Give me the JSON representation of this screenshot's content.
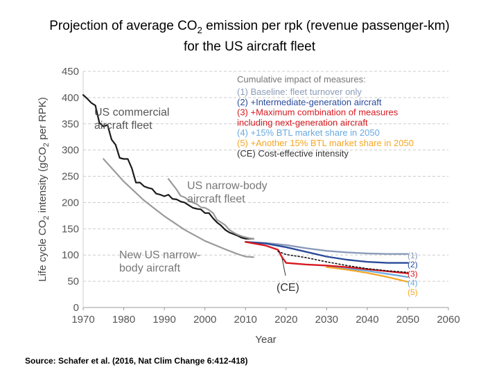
{
  "title": {
    "line1_pre": "Projection of average CO",
    "line1_sub": "2",
    "line1_post": " emission per rpk (revenue passenger-km)",
    "line2": "for the US aircraft fleet"
  },
  "source": "Source: Schafer et al. (2016, Nat Clim Change 6:412-418)",
  "colors": {
    "commercial": "#1a1a1a",
    "narrowbody": "#9a9a9a",
    "baseline": "#8a9bb8",
    "intermediate": "#2a4a9a",
    "maxcombo": "#d71920",
    "btl15": "#69a9e0",
    "btl30": "#f5a623",
    "ce": "#111111"
  },
  "chart_data": {
    "type": "line",
    "xlabel": "Year",
    "ylabel_parts": [
      "Life cycle CO",
      "2",
      " intensity (gCO",
      "2",
      " per RPK)"
    ],
    "xlim": [
      1970,
      2060
    ],
    "ylim": [
      0,
      450
    ],
    "xticks": [
      1970,
      1980,
      1990,
      2000,
      2010,
      2020,
      2030,
      2040,
      2050,
      2060
    ],
    "yticks": [
      0,
      50,
      100,
      150,
      200,
      250,
      300,
      350,
      400,
      450
    ],
    "grid": "dashed horizontal",
    "legend_title": "Cumulative impact of measures:",
    "legend_placement": "top-right",
    "legend": [
      {
        "label": "(1) Baseline: fleet turnover only",
        "color": "#8a9bb8"
      },
      {
        "label": "(2) +Intermediate-generation aircraft",
        "color": "#2a4a9a"
      },
      {
        "label": "(3) +Maximum combination of measures",
        "color": "#d71920"
      },
      {
        "label": "including next-generation aircraft",
        "color": "#d71920"
      },
      {
        "label": "(4) +15% BTL market share in 2050",
        "color": "#69a9e0"
      },
      {
        "label": "(5) +Another 15% BTL market share in 2050",
        "color": "#f5a623"
      },
      {
        "label": "(CE) Cost-effective intensity",
        "color": "#333333"
      }
    ],
    "annotations": {
      "commercial": [
        "US commercial",
        "aircraft fleet"
      ],
      "narrowbody": [
        "US narrow-body",
        "aircraft fleet"
      ],
      "newnarrow": [
        "New US narrow-",
        "body aircraft"
      ],
      "ce": "(CE)"
    },
    "end_labels": [
      "(1)",
      "(2)",
      "(3)",
      "(4)",
      "(5)"
    ],
    "series": [
      {
        "name": "US commercial aircraft fleet",
        "color": "#1a1a1a",
        "width": 2.2,
        "points": [
          [
            1970,
            405
          ],
          [
            1971,
            398
          ],
          [
            1972,
            390
          ],
          [
            1973,
            385
          ],
          [
            1974,
            352
          ],
          [
            1975,
            345
          ],
          [
            1976,
            348
          ],
          [
            1977,
            320
          ],
          [
            1978,
            310
          ],
          [
            1979,
            285
          ],
          [
            1980,
            283
          ],
          [
            1981,
            283
          ],
          [
            1982,
            265
          ],
          [
            1983,
            238
          ],
          [
            1984,
            238
          ],
          [
            1985,
            231
          ],
          [
            1986,
            228
          ],
          [
            1987,
            226
          ],
          [
            1988,
            217
          ],
          [
            1989,
            215
          ],
          [
            1990,
            212
          ],
          [
            1991,
            215
          ],
          [
            1992,
            207
          ],
          [
            1993,
            206
          ],
          [
            1994,
            202
          ],
          [
            1995,
            200
          ],
          [
            1996,
            195
          ],
          [
            1997,
            190
          ],
          [
            1998,
            188
          ],
          [
            1999,
            187
          ],
          [
            2000,
            180
          ],
          [
            2001,
            180
          ],
          [
            2002,
            170
          ],
          [
            2003,
            162
          ],
          [
            2004,
            156
          ],
          [
            2005,
            148
          ],
          [
            2006,
            143
          ],
          [
            2007,
            140
          ],
          [
            2008,
            137
          ],
          [
            2009,
            133
          ],
          [
            2010,
            131
          ],
          [
            2011,
            131
          ],
          [
            2012,
            131
          ]
        ]
      },
      {
        "name": "US narrow-body aircraft fleet",
        "color": "#9a9a9a",
        "width": 2.2,
        "points": [
          [
            1991,
            245
          ],
          [
            1992,
            235
          ],
          [
            1993,
            225
          ],
          [
            1994,
            213
          ],
          [
            1995,
            210
          ],
          [
            1996,
            204
          ],
          [
            1997,
            200
          ],
          [
            1998,
            197
          ],
          [
            1999,
            191
          ],
          [
            2000,
            190
          ],
          [
            2001,
            186
          ],
          [
            2002,
            180
          ],
          [
            2003,
            167
          ],
          [
            2004,
            162
          ],
          [
            2005,
            157
          ],
          [
            2006,
            148
          ],
          [
            2007,
            143
          ],
          [
            2008,
            139
          ],
          [
            2009,
            136
          ],
          [
            2010,
            134
          ],
          [
            2011,
            132
          ],
          [
            2012,
            131
          ]
        ]
      },
      {
        "name": "New US narrow-body aircraft",
        "color": "#9a9a9a",
        "width": 2.2,
        "points": [
          [
            1975,
            283
          ],
          [
            1980,
            240
          ],
          [
            1985,
            204
          ],
          [
            1990,
            174
          ],
          [
            1995,
            148
          ],
          [
            2000,
            127
          ],
          [
            2005,
            111
          ],
          [
            2008,
            102
          ],
          [
            2010,
            97
          ],
          [
            2012,
            96
          ]
        ]
      },
      {
        "name": "(1)",
        "color": "#8a9bb8",
        "width": 2.4,
        "points": [
          [
            2010,
            125
          ],
          [
            2015,
            123
          ],
          [
            2020,
            119
          ],
          [
            2025,
            113
          ],
          [
            2030,
            108
          ],
          [
            2035,
            105
          ],
          [
            2040,
            103
          ],
          [
            2045,
            102
          ],
          [
            2050,
            102
          ]
        ]
      },
      {
        "name": "(2)",
        "color": "#2a4a9a",
        "width": 2.4,
        "points": [
          [
            2010,
            125
          ],
          [
            2015,
            122
          ],
          [
            2020,
            115
          ],
          [
            2025,
            106
          ],
          [
            2030,
            97
          ],
          [
            2035,
            91
          ],
          [
            2040,
            87
          ],
          [
            2045,
            85
          ],
          [
            2050,
            85
          ]
        ]
      },
      {
        "name": "(4)",
        "color": "#69a9e0",
        "width": 2.2,
        "points": [
          [
            2030,
            78
          ],
          [
            2035,
            74
          ],
          [
            2040,
            70
          ],
          [
            2045,
            64
          ],
          [
            2050,
            58
          ]
        ]
      },
      {
        "name": "(5)",
        "color": "#f5a623",
        "width": 2.2,
        "points": [
          [
            2030,
            77
          ],
          [
            2035,
            72
          ],
          [
            2040,
            66
          ],
          [
            2045,
            58
          ],
          [
            2050,
            49
          ]
        ]
      },
      {
        "name": "(3)",
        "color": "#d71920",
        "width": 2.4,
        "points": [
          [
            2010,
            125
          ],
          [
            2015,
            118
          ],
          [
            2018,
            110
          ],
          [
            2019,
            96
          ],
          [
            2020,
            85
          ],
          [
            2025,
            82
          ],
          [
            2030,
            80
          ],
          [
            2035,
            77
          ],
          [
            2040,
            73
          ],
          [
            2045,
            69
          ],
          [
            2050,
            65
          ]
        ]
      },
      {
        "name": "(CE)",
        "color": "#111111",
        "width": 1.6,
        "dashed": true,
        "points": [
          [
            2018,
            107
          ],
          [
            2020,
            101
          ],
          [
            2025,
            95
          ],
          [
            2030,
            87
          ],
          [
            2035,
            80
          ],
          [
            2040,
            74
          ],
          [
            2045,
            70
          ],
          [
            2050,
            67
          ]
        ]
      }
    ]
  }
}
